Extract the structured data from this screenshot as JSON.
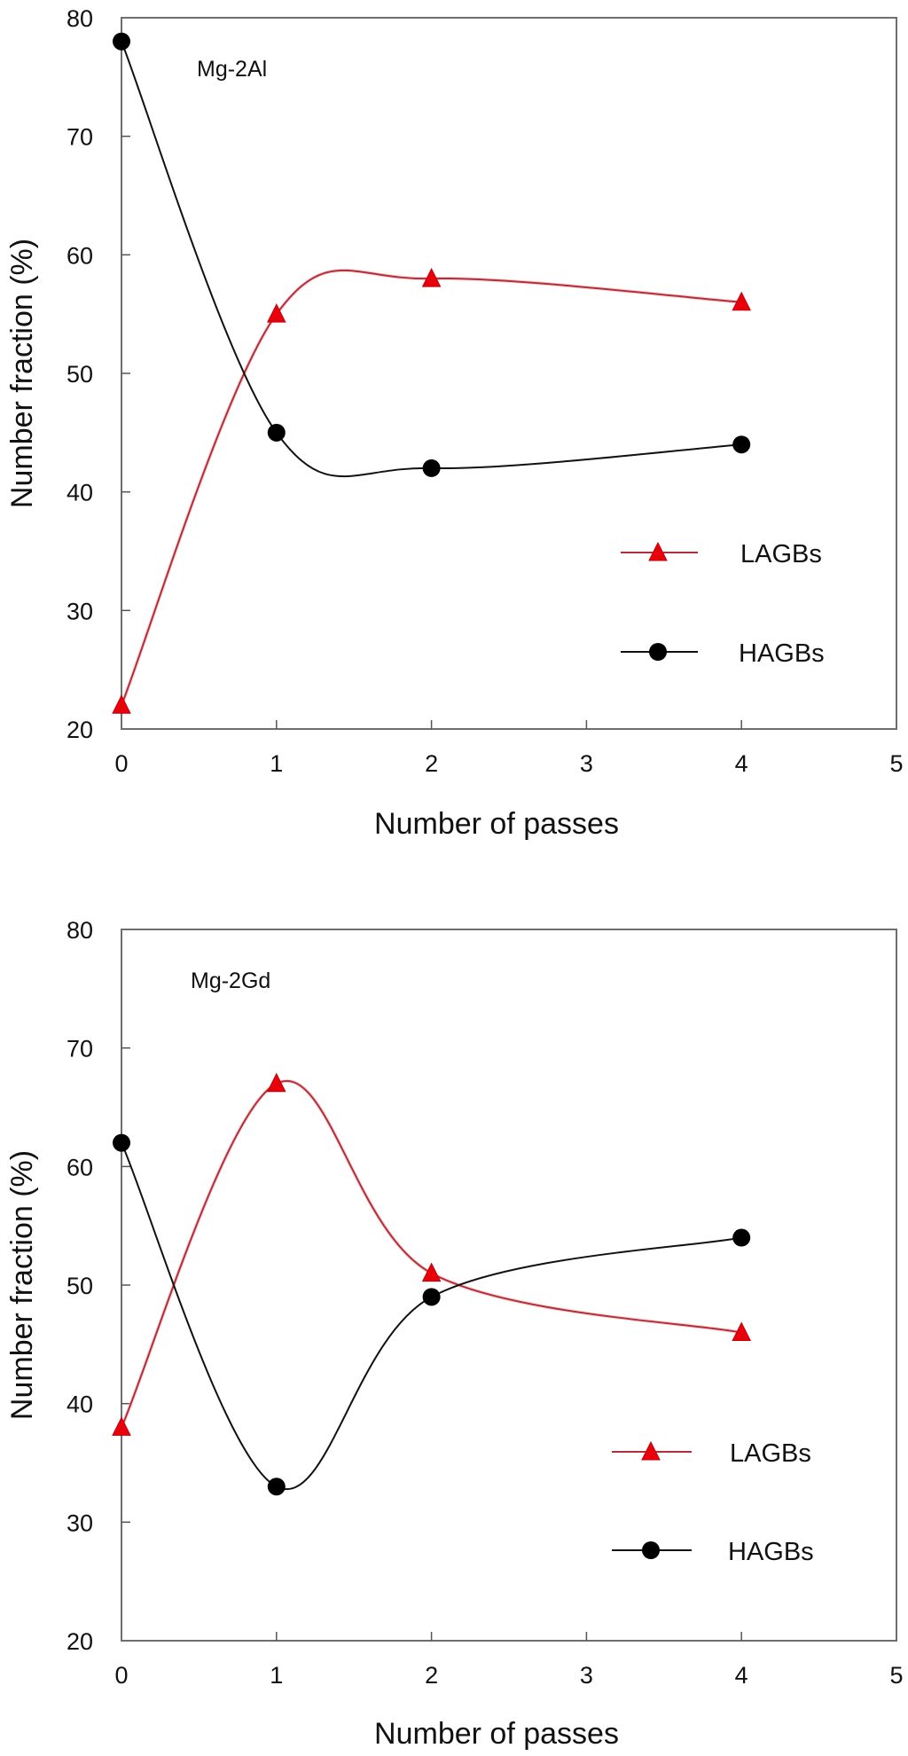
{
  "chart_data": [
    {
      "type": "line",
      "annotation": "Mg-2Al",
      "xlabel": "Number of passes",
      "ylabel": "Number fraction (%)",
      "xlim": [
        0,
        5
      ],
      "ylim": [
        20,
        80
      ],
      "xticks": [
        "0",
        "1",
        "2",
        "3",
        "4",
        "5"
      ],
      "yticks": [
        "20",
        "30",
        "40",
        "50",
        "60",
        "70",
        "80"
      ],
      "grid": false,
      "legend_position": "center-right",
      "x": [
        0,
        1,
        2,
        4
      ],
      "series": [
        {
          "name": "LAGBs",
          "marker": "triangle",
          "color": "#e8000b",
          "line_color": "#b0303a",
          "values": [
            22,
            55,
            58,
            56
          ]
        },
        {
          "name": "HAGBs",
          "marker": "circle",
          "color": "#000000",
          "line_color": "#111111",
          "values": [
            78,
            45,
            42,
            44
          ]
        }
      ]
    },
    {
      "type": "line",
      "annotation": "Mg-2Gd",
      "xlabel": "Number of passes",
      "ylabel": "Number fraction (%)",
      "xlim": [
        0,
        5
      ],
      "ylim": [
        20,
        80
      ],
      "xticks": [
        "0",
        "1",
        "2",
        "3",
        "4",
        "5"
      ],
      "yticks": [
        "20",
        "30",
        "40",
        "50",
        "60",
        "70",
        "80"
      ],
      "grid": false,
      "legend_position": "bottom-right",
      "x": [
        0,
        1,
        2,
        4
      ],
      "series": [
        {
          "name": "LAGBs",
          "marker": "triangle",
          "color": "#e8000b",
          "line_color": "#b0303a",
          "values": [
            38,
            67,
            51,
            46
          ]
        },
        {
          "name": "HAGBs",
          "marker": "circle",
          "color": "#000000",
          "line_color": "#111111",
          "values": [
            62,
            33,
            49,
            54
          ]
        }
      ]
    }
  ]
}
